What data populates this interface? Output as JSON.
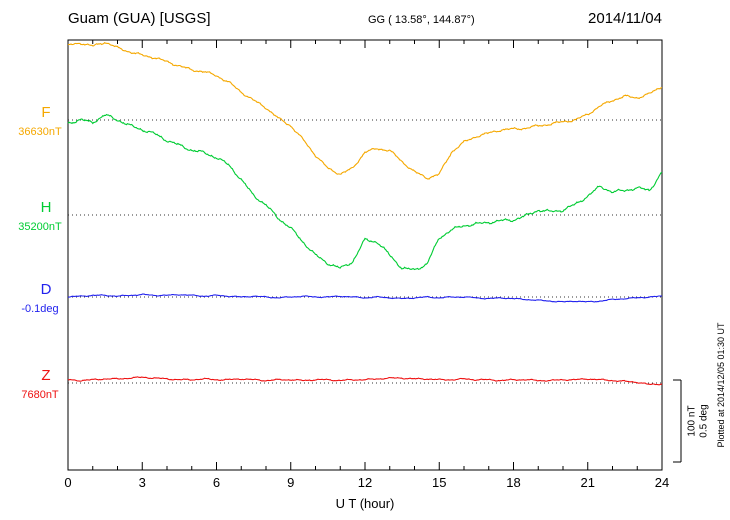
{
  "header": {
    "station": "Guam (GUA)  [USGS]",
    "coords": "GG ( 13.58°, 144.87°)",
    "date": "2014/11/04"
  },
  "axis": {
    "xlabel": "U T (hour)",
    "x_ticks": [
      0,
      3,
      6,
      9,
      12,
      15,
      18,
      21,
      24
    ],
    "x_min": 0,
    "x_max": 24,
    "minor_tick_hours": 1
  },
  "scalebar": {
    "nt_label": "100 nT",
    "deg_label": "0.5 deg",
    "nT": 100,
    "deg": 0.5
  },
  "footer": {
    "plotted_at": "Plotted at 2014/12/05 01:30 UT"
  },
  "chart_data": {
    "type": "line",
    "title": "Guam (GUA) [USGS] magnetogram 2014/11/04",
    "x_unit": "hour UT",
    "x_start": 0,
    "x_step": 0.5,
    "x_end": 24,
    "grid": "dotted baselines per component",
    "legend_position": "left labels per series",
    "scale": {
      "nT_per_bar": 100,
      "deg_per_bar": 0.5
    },
    "series": [
      {
        "id": "F",
        "letter": "F",
        "baseline_label": "36630nT",
        "baseline_value": 36630,
        "unit": "nT",
        "color": "#f5a800",
        "offsets": [
          91,
          94,
          90,
          95,
          88,
          83,
          79,
          76,
          71,
          66,
          61,
          59,
          54,
          46,
          34,
          24,
          15,
          2,
          -7,
          -24,
          -43,
          -59,
          -66,
          -59,
          -39,
          -35,
          -37,
          -51,
          -63,
          -71,
          -66,
          -39,
          -27,
          -20,
          -16,
          -12,
          -11,
          -10,
          -7,
          -5,
          -2,
          0,
          7,
          17,
          24,
          29,
          27,
          32,
          41
        ]
      },
      {
        "id": "H",
        "letter": "H",
        "baseline_label": "35200nT",
        "baseline_value": 35200,
        "unit": "nT",
        "color": "#00cc33",
        "offsets": [
          112,
          116,
          113,
          122,
          116,
          109,
          104,
          99,
          91,
          85,
          79,
          76,
          70,
          61,
          43,
          24,
          12,
          -4,
          -16,
          -33,
          -49,
          -59,
          -65,
          -57,
          -30,
          -33,
          -49,
          -65,
          -67,
          -60,
          -28,
          -18,
          -13,
          -11,
          -9,
          -7,
          -6,
          -1,
          6,
          4,
          6,
          13,
          23,
          35,
          28,
          30,
          33,
          30,
          52
        ]
      },
      {
        "id": "D",
        "letter": "D",
        "baseline_label": "-0.1deg",
        "baseline_value": -0.1,
        "unit": "deg",
        "color": "#2222ee",
        "offsets": [
          0,
          0.005,
          0.01,
          0.01,
          0.005,
          0.01,
          0.015,
          0.01,
          0.01,
          0.015,
          0.01,
          0.005,
          0.01,
          0.005,
          0,
          0.005,
          0,
          -0.005,
          0,
          0.005,
          0,
          0,
          0.005,
          0,
          -0.005,
          0,
          -0.005,
          -0.01,
          -0.005,
          0,
          -0.005,
          0,
          0,
          -0.005,
          -0.01,
          -0.005,
          -0.01,
          -0.015,
          -0.02,
          -0.025,
          -0.03,
          -0.025,
          -0.03,
          -0.025,
          -0.015,
          -0.01,
          -0.005,
          0,
          0.005
        ]
      },
      {
        "id": "Z",
        "letter": "Z",
        "baseline_label": "7680nT",
        "baseline_value": 7680,
        "unit": "nT",
        "color": "#ee1111",
        "offsets": [
          4,
          3,
          4,
          5,
          5,
          6,
          7,
          6,
          5,
          4,
          4,
          5,
          4,
          4,
          5,
          4,
          3,
          4,
          4,
          3,
          4,
          4,
          3,
          4,
          4,
          5,
          6,
          6,
          5,
          5,
          4,
          4,
          5,
          4,
          4,
          3,
          4,
          4,
          3,
          3,
          4,
          4,
          5,
          4,
          3,
          2,
          1,
          -2,
          -1
        ]
      }
    ]
  }
}
